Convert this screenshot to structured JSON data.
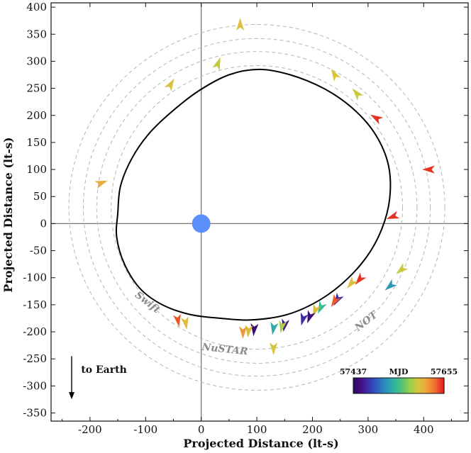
{
  "chart_data": {
    "type": "scatter",
    "title": "",
    "xlabel": "Projected Distance (lt-s)",
    "ylabel": "Projected Distance (lt-s)",
    "xlim": [
      -270,
      480
    ],
    "ylim": [
      -365,
      408
    ],
    "xticks": [
      "-200",
      "-100",
      "0",
      "100",
      "200",
      "300",
      "400"
    ],
    "yticks": [
      "400",
      "350",
      "300",
      "250",
      "200",
      "150",
      "100",
      "50",
      "0",
      "-50",
      "-100",
      "-150",
      "-200",
      "-250",
      "-300",
      "-350"
    ],
    "orbit": {
      "description_visible": false,
      "points": [
        [
          -150,
          20
        ],
        [
          -145,
          70
        ],
        [
          -125,
          120
        ],
        [
          -95,
          165
        ],
        [
          -55,
          205
        ],
        [
          -5,
          245
        ],
        [
          50,
          275
        ],
        [
          105,
          285
        ],
        [
          160,
          275
        ],
        [
          220,
          250
        ],
        [
          270,
          215
        ],
        [
          310,
          170
        ],
        [
          335,
          115
        ],
        [
          340,
          60
        ],
        [
          330,
          5
        ],
        [
          305,
          -50
        ],
        [
          265,
          -100
        ],
        [
          215,
          -140
        ],
        [
          155,
          -168
        ],
        [
          90,
          -178
        ],
        [
          35,
          -175
        ],
        [
          -20,
          -168
        ],
        [
          -70,
          -150
        ],
        [
          -110,
          -120
        ],
        [
          -138,
          -75
        ],
        [
          -152,
          -25
        ]
      ]
    },
    "star": {
      "x": 0,
      "y": 0,
      "color": "#5b8ff9"
    },
    "rings": [
      {
        "label": "Swift",
        "radius_fraction": 0.84
      },
      {
        "label": "NuSTAR",
        "radius_fraction": 0.92
      },
      {
        "label": "NOT",
        "radius_fraction": 1.0
      }
    ],
    "ring_geometry": {
      "cx": 100,
      "cy": 30,
      "outer_r": 312,
      "inner_ring_radii": [
        262,
        288,
        312,
        338
      ]
    },
    "arrows": [
      {
        "x": 70,
        "y": 367,
        "mjd": 57600,
        "dir": 270
      },
      {
        "x": 30,
        "y": 295,
        "mjd": 57590,
        "dir": 290
      },
      {
        "x": -55,
        "y": 257,
        "mjd": 57595,
        "dir": 300
      },
      {
        "x": 240,
        "y": 275,
        "mjd": 57595,
        "dir": 240
      },
      {
        "x": 280,
        "y": 240,
        "mjd": 57590,
        "dir": 230
      },
      {
        "x": 315,
        "y": 195,
        "mjd": 57650,
        "dir": 210
      },
      {
        "x": 410,
        "y": 100,
        "mjd": 57650,
        "dir": 180
      },
      {
        "x": 345,
        "y": 13,
        "mjd": 57650,
        "dir": 160
      },
      {
        "x": -180,
        "y": 75,
        "mjd": 57610,
        "dir": 340
      },
      {
        "x": 360,
        "y": -85,
        "mjd": 57590,
        "dir": 140
      },
      {
        "x": 340,
        "y": -115,
        "mjd": 57520,
        "dir": 140
      },
      {
        "x": 285,
        "y": -103,
        "mjd": 57650,
        "dir": 130
      },
      {
        "x": 270,
        "y": -110,
        "mjd": 57600,
        "dir": 130
      },
      {
        "x": 245,
        "y": -140,
        "mjd": 57470,
        "dir": 120
      },
      {
        "x": 240,
        "y": -143,
        "mjd": 57640,
        "dir": 120
      },
      {
        "x": 215,
        "y": -155,
        "mjd": 57540,
        "dir": 115
      },
      {
        "x": 205,
        "y": -160,
        "mjd": 57600,
        "dir": 110
      },
      {
        "x": 195,
        "y": -172,
        "mjd": 57450,
        "dir": 110
      },
      {
        "x": 183,
        "y": -176,
        "mjd": 57470,
        "dir": 105
      },
      {
        "x": 150,
        "y": -187,
        "mjd": 57460,
        "dir": 100
      },
      {
        "x": 145,
        "y": -190,
        "mjd": 57580,
        "dir": 100
      },
      {
        "x": 130,
        "y": -193,
        "mjd": 57530,
        "dir": 100
      },
      {
        "x": 95,
        "y": -195,
        "mjd": 57445,
        "dir": 95
      },
      {
        "x": 85,
        "y": -198,
        "mjd": 57600,
        "dir": 95
      },
      {
        "x": 75,
        "y": -200,
        "mjd": 57620,
        "dir": 90
      },
      {
        "x": -28,
        "y": -183,
        "mjd": 57600,
        "dir": 80
      },
      {
        "x": -42,
        "y": -178,
        "mjd": 57640,
        "dir": 80
      },
      {
        "x": 130,
        "y": -230,
        "mjd": 57595,
        "dir": 90
      }
    ],
    "ring_labels": [
      {
        "text": "Swift",
        "x": -100,
        "y": -150,
        "rotate": 38
      },
      {
        "text": "NuSTAR",
        "x": 42,
        "y": -238,
        "rotate": 6
      },
      {
        "text": "NOT",
        "x": 300,
        "y": -185,
        "rotate": -38
      }
    ],
    "earth": {
      "label": "to Earth"
    },
    "colorbar": {
      "title": "MJD",
      "min_label": "57437",
      "max_label": "57655",
      "min": 57437,
      "max": 57655,
      "colors": [
        "#2d0a5b",
        "#47108a",
        "#3a3bb0",
        "#2f66c2",
        "#2a93c0",
        "#2eb6a0",
        "#59c470",
        "#9ecf4a",
        "#d8c43a",
        "#eda33a",
        "#f06a2c",
        "#e02020"
      ]
    },
    "grid": false,
    "legend": "none"
  }
}
